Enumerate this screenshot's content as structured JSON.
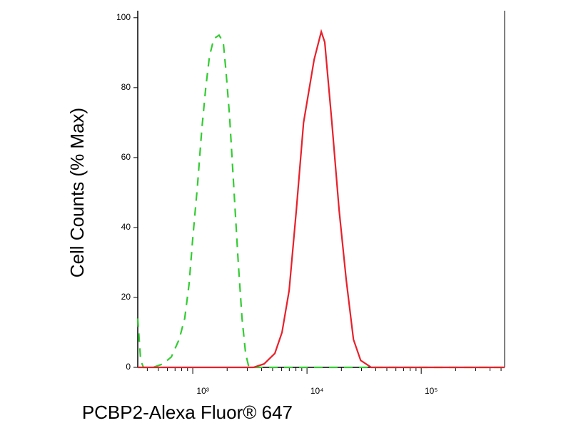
{
  "chart_data": {
    "type": "line",
    "x_label": "PCBP2-Alexa Fluor® 647",
    "y_label": "Cell Counts (% Max)",
    "xscale": "log",
    "xlim": [
      330,
      537000
    ],
    "ylim": [
      0,
      102
    ],
    "xticks": [
      {
        "value": 1000,
        "label": "10³"
      },
      {
        "value": 10000,
        "label": "10⁴"
      },
      {
        "value": 100000,
        "label": "10⁵"
      }
    ],
    "xticks_minor": [
      400,
      500,
      600,
      700,
      800,
      900,
      2000,
      3000,
      4000,
      5000,
      6000,
      7000,
      8000,
      9000,
      20000,
      30000,
      40000,
      50000,
      60000,
      70000,
      80000,
      90000,
      200000,
      300000,
      400000,
      500000
    ],
    "yticks": [
      0,
      20,
      40,
      60,
      80,
      100
    ],
    "series": [
      {
        "color": "#33cc33",
        "line_style": "dashed",
        "x": [
          330,
          350,
          370,
          450,
          550,
          650,
          760,
          850,
          930,
          1000,
          1100,
          1200,
          1300,
          1400,
          1530,
          1700,
          1850,
          1950,
          2100,
          2300,
          2500,
          2700,
          2900,
          3100,
          5000,
          20000,
          537000
        ],
        "values": [
          14,
          2,
          0,
          0,
          1,
          3,
          8,
          14,
          24,
          37,
          52,
          68,
          80,
          89,
          94,
          95,
          93,
          85,
          72,
          50,
          30,
          14,
          4,
          0,
          0,
          0,
          0
        ]
      },
      {
        "color": "#e8202a",
        "line_style": "solid",
        "x": [
          330,
          3400,
          4220,
          5230,
          6040,
          6980,
          8070,
          9330,
          11540,
          13340,
          14300,
          16520,
          19100,
          22060,
          25500,
          29500,
          36500,
          537000
        ],
        "values": [
          0,
          0,
          1,
          4,
          10,
          22,
          45,
          70,
          88,
          96,
          93,
          70,
          45,
          25,
          8,
          2,
          0,
          0
        ]
      }
    ]
  }
}
